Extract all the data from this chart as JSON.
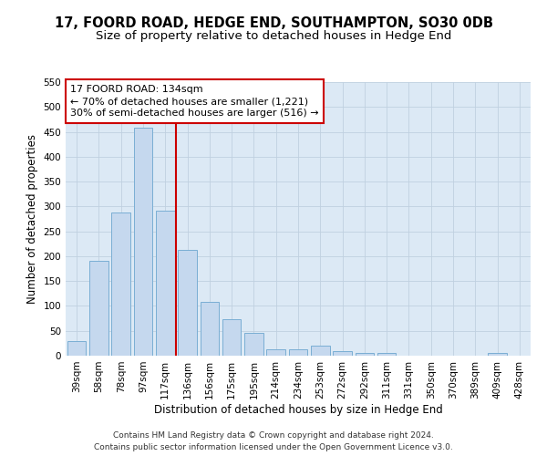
{
  "title": "17, FOORD ROAD, HEDGE END, SOUTHAMPTON, SO30 0DB",
  "subtitle": "Size of property relative to detached houses in Hedge End",
  "xlabel": "Distribution of detached houses by size in Hedge End",
  "ylabel": "Number of detached properties",
  "categories": [
    "39sqm",
    "58sqm",
    "78sqm",
    "97sqm",
    "117sqm",
    "136sqm",
    "156sqm",
    "175sqm",
    "195sqm",
    "214sqm",
    "234sqm",
    "253sqm",
    "272sqm",
    "292sqm",
    "311sqm",
    "331sqm",
    "350sqm",
    "370sqm",
    "389sqm",
    "409sqm",
    "428sqm"
  ],
  "values": [
    30,
    191,
    287,
    459,
    291,
    213,
    109,
    74,
    46,
    13,
    12,
    21,
    10,
    5,
    5,
    0,
    0,
    0,
    0,
    5,
    0
  ],
  "bar_color": "#c5d8ee",
  "bar_edge_color": "#7aaed4",
  "reference_line_x": 4.5,
  "reference_line_label": "17 FOORD ROAD: 134sqm",
  "annotation_line1": "← 70% of detached houses are smaller (1,221)",
  "annotation_line2": "30% of semi-detached houses are larger (516) →",
  "annotation_box_color": "#ffffff",
  "annotation_box_edgecolor": "#cc0000",
  "vline_color": "#cc0000",
  "grid_color": "#c0d0e0",
  "bg_color": "#dce9f5",
  "ylim": [
    0,
    550
  ],
  "yticks": [
    0,
    50,
    100,
    150,
    200,
    250,
    300,
    350,
    400,
    450,
    500,
    550
  ],
  "footer_line1": "Contains HM Land Registry data © Crown copyright and database right 2024.",
  "footer_line2": "Contains public sector information licensed under the Open Government Licence v3.0.",
  "title_fontsize": 10.5,
  "subtitle_fontsize": 9.5,
  "axis_label_fontsize": 8.5,
  "tick_fontsize": 7.5,
  "annotation_fontsize": 8,
  "footer_fontsize": 6.5
}
